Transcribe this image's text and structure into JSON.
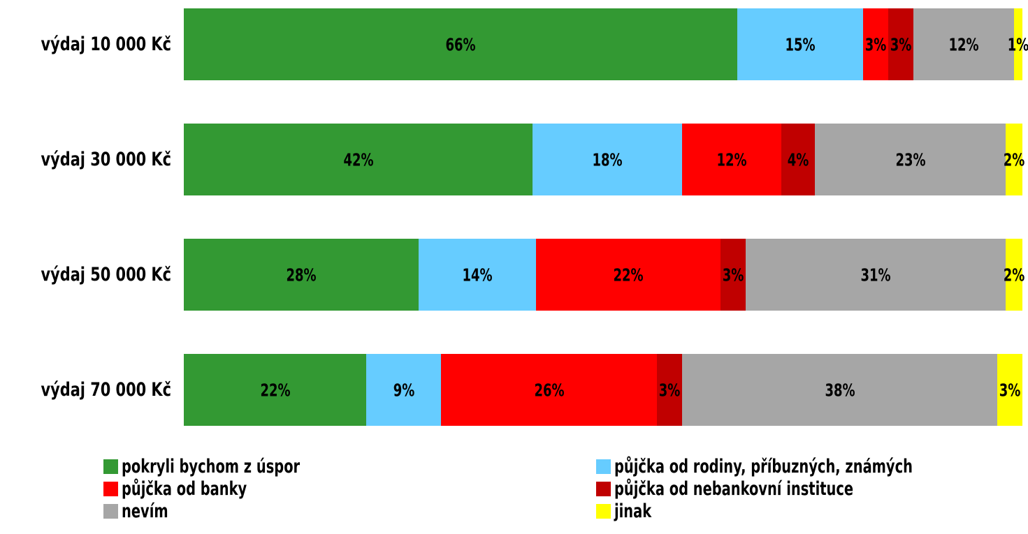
{
  "chart_data": {
    "type": "bar",
    "orientation": "horizontal",
    "stacked": "percent",
    "categories": [
      "výdaj 10 000 Kč",
      "výdaj 30 000 Kč",
      "výdaj 50 000 Kč",
      "výdaj 70 000 Kč"
    ],
    "series": [
      {
        "name": "pokryli bychom z úspor",
        "color": "#339933",
        "values": [
          66,
          42,
          28,
          22
        ],
        "labels": [
          "66%",
          "42%",
          "28%",
          "22%"
        ]
      },
      {
        "name": "půjčka od rodiny, příbuzných, známých",
        "color": "#66CCFF",
        "values": [
          15,
          18,
          14,
          9
        ],
        "labels": [
          "15%",
          "18%",
          "14%",
          "9%"
        ]
      },
      {
        "name": "půjčka od banky",
        "color": "#FF0000",
        "values": [
          3,
          12,
          22,
          26
        ],
        "labels": [
          "3%",
          "12%",
          "22%",
          "26%"
        ]
      },
      {
        "name": "půjčka od nebankovní instituce",
        "color": "#C00000",
        "values": [
          3,
          4,
          3,
          3
        ],
        "labels": [
          "3%",
          "4%",
          "3%",
          "3%"
        ]
      },
      {
        "name": "nevím",
        "color": "#A6A6A6",
        "values": [
          12,
          23,
          31,
          38
        ],
        "labels": [
          "12%",
          "23%",
          "31%",
          "38%"
        ]
      },
      {
        "name": "jinak",
        "color": "#FFFF00",
        "values": [
          1,
          2,
          2,
          3
        ],
        "labels": [
          "1%",
          "2%",
          "2%",
          "3%"
        ]
      }
    ],
    "title": "",
    "xlabel": "",
    "ylabel": "",
    "grid": false,
    "legend": "bottom"
  }
}
